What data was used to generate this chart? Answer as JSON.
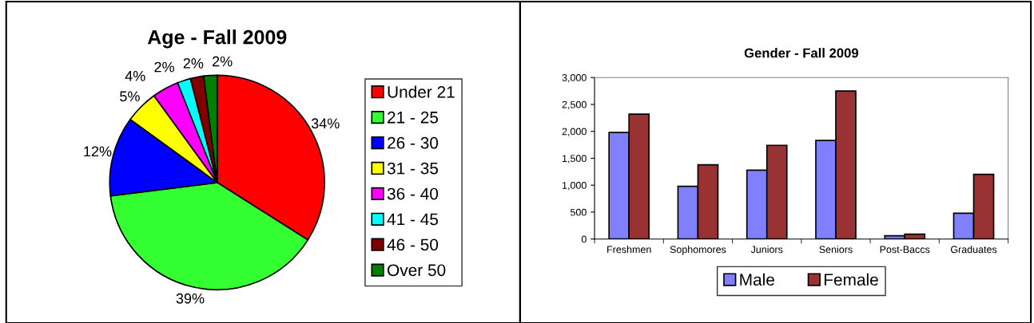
{
  "chart_data": [
    {
      "type": "pie",
      "title": "Age - Fall 2009",
      "categories": [
        "Under 21",
        "21 - 25",
        "26 - 30",
        "31 - 35",
        "36 - 40",
        "41 - 45",
        "46 - 50",
        "Over 50"
      ],
      "values": [
        34,
        39,
        12,
        5,
        4,
        2,
        2,
        2
      ],
      "colors": [
        "#ff0000",
        "#33ff33",
        "#0000ff",
        "#ffff00",
        "#ff00ff",
        "#00ffff",
        "#800000",
        "#008000"
      ],
      "value_labels": [
        "34%",
        "39%",
        "12%",
        "5%",
        "4%",
        "2%",
        "2%",
        "2%"
      ],
      "legend": "right"
    },
    {
      "type": "bar",
      "title": "Gender - Fall 2009",
      "categories": [
        "Freshmen",
        "Sophomores",
        "Juniors",
        "Seniors",
        "Post-Baccs",
        "Graduates"
      ],
      "series": [
        {
          "name": "Male",
          "color": "#8080ff",
          "values": [
            1980,
            980,
            1280,
            1830,
            60,
            480
          ]
        },
        {
          "name": "Female",
          "color": "#993333",
          "values": [
            2320,
            1380,
            1740,
            2750,
            90,
            1200
          ]
        }
      ],
      "ylim": [
        0,
        3000
      ],
      "yticks": [
        {
          "value": 0,
          "label": "0"
        },
        {
          "value": 500,
          "label": "500"
        },
        {
          "value": 1000,
          "label": "1,000"
        },
        {
          "value": 1500,
          "label": "1,500"
        },
        {
          "value": 2000,
          "label": "2,000"
        },
        {
          "value": 2500,
          "label": "2,500"
        },
        {
          "value": 3000,
          "label": "3,000"
        }
      ],
      "grid": false,
      "legend": "bottom"
    }
  ]
}
